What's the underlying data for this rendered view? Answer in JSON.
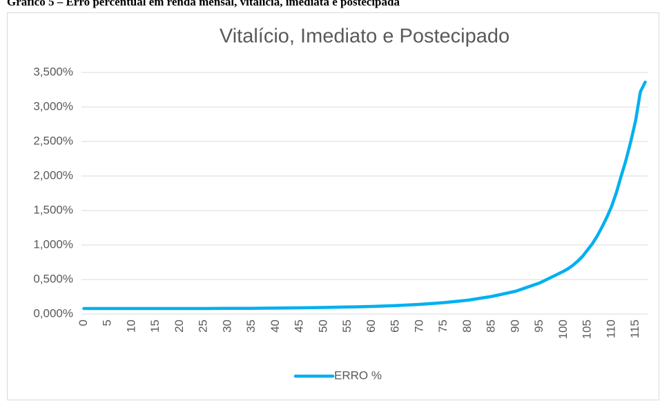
{
  "caption": "Gráfico 5 – Erro percentual em renda mensal, vitalícia, imediata e postecipada",
  "chart_data": {
    "type": "line",
    "title": "Vitalício, Imediato e Postecipado",
    "x": [
      0,
      5,
      10,
      15,
      20,
      25,
      30,
      35,
      40,
      45,
      50,
      55,
      60,
      65,
      70,
      75,
      80,
      85,
      90,
      95,
      100,
      101,
      102,
      103,
      104,
      105,
      106,
      107,
      108,
      109,
      110,
      111,
      112,
      113,
      114,
      115,
      116,
      117
    ],
    "series": [
      {
        "name": "ERRO %",
        "color": "#00b0f0",
        "values": [
          0.08,
          0.08,
          0.08,
          0.08,
          0.08,
          0.08,
          0.082,
          0.083,
          0.086,
          0.09,
          0.095,
          0.102,
          0.11,
          0.122,
          0.14,
          0.165,
          0.2,
          0.255,
          0.33,
          0.45,
          0.62,
          0.66,
          0.71,
          0.77,
          0.84,
          0.93,
          1.02,
          1.13,
          1.26,
          1.4,
          1.56,
          1.76,
          2.0,
          2.23,
          2.5,
          2.8,
          3.22,
          3.36
        ]
      }
    ],
    "xlim": [
      -0.5,
      117.5
    ],
    "xticks": [
      0,
      5,
      10,
      15,
      20,
      25,
      30,
      35,
      40,
      45,
      50,
      55,
      60,
      65,
      70,
      75,
      80,
      85,
      90,
      95,
      100,
      105,
      110,
      115
    ],
    "ylim": [
      0,
      3.5
    ],
    "yticks": [
      {
        "value": 0,
        "label": "0,000%"
      },
      {
        "value": 0.5,
        "label": "0,500%"
      },
      {
        "value": 1,
        "label": "1,000%"
      },
      {
        "value": 1.5,
        "label": "1,500%"
      },
      {
        "value": 2,
        "label": "2,000%"
      },
      {
        "value": 2.5,
        "label": "2,500%"
      },
      {
        "value": 3,
        "label": "3,000%"
      },
      {
        "value": 3.5,
        "label": "3,500%"
      }
    ],
    "grid": true,
    "legend": "bottom"
  }
}
